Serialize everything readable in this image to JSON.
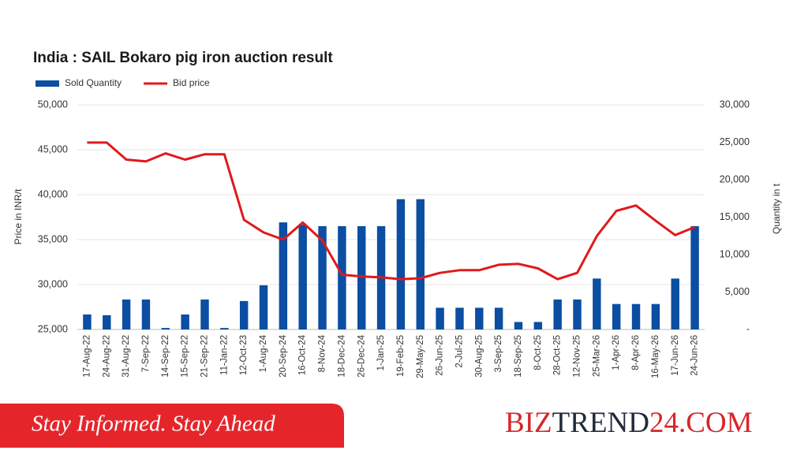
{
  "chart_data": {
    "type": "bar",
    "title": "India : SAIL Bokaro pig iron auction result",
    "y_label": "Price in INR/t",
    "y2_label": "Quantity in t",
    "categories": [
      "17-Aug-22",
      "24-Aug-22",
      "31-Aug-22",
      "7-Sep-22",
      "14-Sep-22",
      "15-Sep-22",
      "21-Sep-22",
      "11-Jan-22",
      "12-Oct-23",
      "1-Aug-24",
      "20-Sep-24",
      "16-Oct-24",
      "8-Nov-24",
      "18-Dec-24",
      "26-Dec-24",
      "1-Jan-25",
      "19-Feb-25",
      "29-May-25",
      "26-Jun-25",
      "2-Jul-25",
      "30-Aug-25",
      "3-Sep-25",
      "18-Sep-25",
      "8-Oct-25",
      "28-Oct-25",
      "12-Nov-25",
      "25-Mar-26",
      "1-Apr-26",
      "8-Apr-26",
      "16-May-26",
      "17-Jun-26",
      "24-Jun-26"
    ],
    "series": [
      {
        "name": "Sold Quantity",
        "type": "bar",
        "axis": "y2",
        "color": "#0b4ea2",
        "values": [
          2000,
          1900,
          4000,
          4000,
          200,
          2000,
          4000,
          200,
          3800,
          5900,
          14300,
          14000,
          13800,
          13800,
          13800,
          13800,
          17400,
          17400,
          2900,
          2900,
          2900,
          2900,
          1000,
          1000,
          4000,
          4000,
          6800,
          3400,
          3400,
          3400,
          6800,
          13800
        ]
      },
      {
        "name": "Bid price",
        "type": "line",
        "color": "#e0191b",
        "values": [
          45800,
          45800,
          43900,
          43700,
          44600,
          43900,
          44500,
          44500,
          37200,
          35800,
          35000,
          36900,
          34900,
          31100,
          30900,
          30800,
          30600,
          30700,
          31300,
          31600,
          31600,
          32200,
          32300,
          31800,
          30600,
          31300,
          35400,
          38200,
          38800,
          37100,
          35500,
          36400
        ]
      }
    ],
    "ylim": [
      25000,
      50000
    ],
    "yticks": [
      {
        "value": 25000,
        "label": "25,000"
      },
      {
        "value": 30000,
        "label": "30,000"
      },
      {
        "value": 35000,
        "label": "35,000"
      },
      {
        "value": 40000,
        "label": "40,000"
      },
      {
        "value": 45000,
        "label": "45,000"
      },
      {
        "value": 50000,
        "label": "50,000"
      }
    ],
    "y2lim": [
      0,
      30000
    ],
    "y2ticks": [
      {
        "value": 0,
        "label": "-"
      },
      {
        "value": 5000,
        "label": "5,000"
      },
      {
        "value": 10000,
        "label": "10,000"
      },
      {
        "value": 15000,
        "label": "15,000"
      },
      {
        "value": 20000,
        "label": "20,000"
      },
      {
        "value": 25000,
        "label": "25,000"
      },
      {
        "value": 30000,
        "label": "30,000"
      }
    ],
    "grid": true,
    "legend": "top-left"
  },
  "footer": {
    "tagline": "Stay Informed. Stay Ahead",
    "brand": [
      "BIZ",
      "TREND",
      "24.COM"
    ]
  }
}
